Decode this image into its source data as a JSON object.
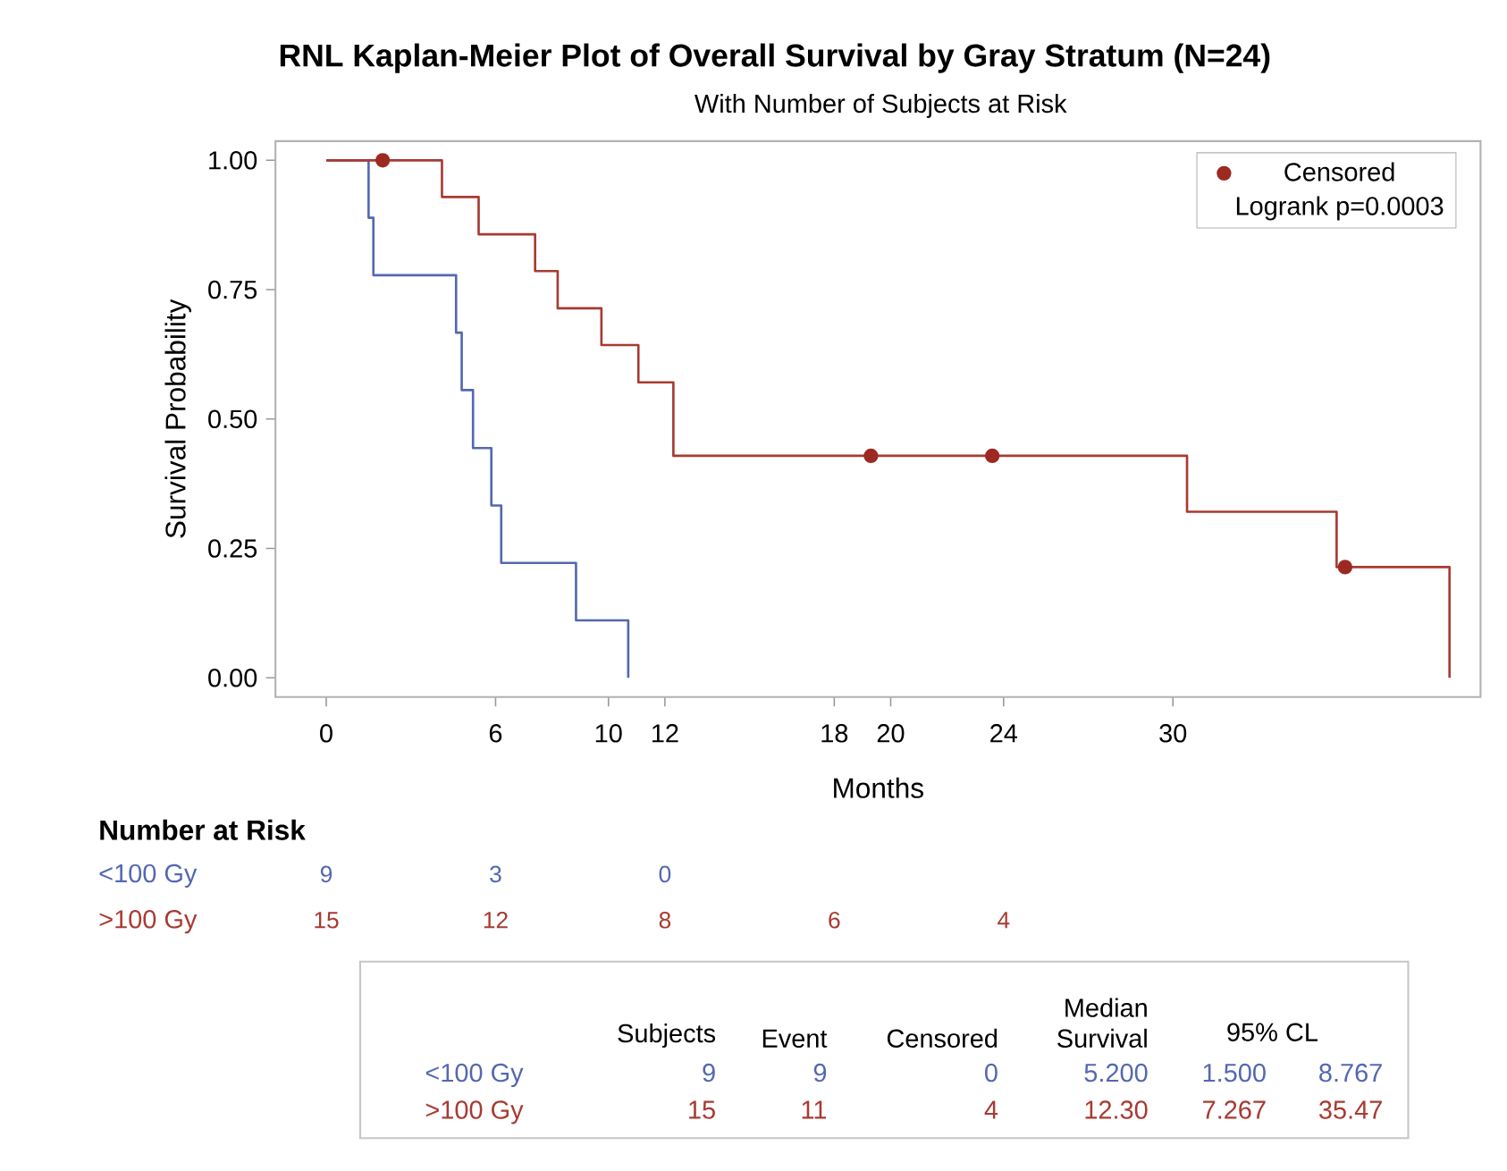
{
  "chart_data": {
    "type": "step",
    "title": "RNL Kaplan-Meier Plot of Overall Survival by Gray Stratum (N=24)",
    "subtitle": "With Number of Subjects at Risk",
    "xlabel": "Months",
    "ylabel": "Survival Probability",
    "xlim": [
      -1.8,
      40.9
    ],
    "ylim": [
      -0.037,
      1.037
    ],
    "xticks": [
      0,
      6,
      10,
      12,
      18,
      20,
      24,
      30
    ],
    "yticks": [
      {
        "value": 0,
        "label": "0.00"
      },
      {
        "value": 0.25,
        "label": "0.25"
      },
      {
        "value": 0.5,
        "label": "0.50"
      },
      {
        "value": 0.75,
        "label": "0.75"
      },
      {
        "value": 1,
        "label": "1.00"
      }
    ],
    "legend": "top right",
    "line_style": "solid",
    "grid": false,
    "series": [
      {
        "name": "<100 Gy",
        "color": "#5468b0",
        "x": [
          0,
          1.5,
          1.67,
          4.6,
          4.8,
          5.2,
          5.85,
          6.2,
          8.85,
          10.7
        ],
        "values": [
          1,
          0.889,
          0.778,
          0.667,
          0.556,
          0.444,
          0.333,
          0.222,
          0.111,
          0
        ]
      },
      {
        "name": ">100 Gy",
        "color": "#a83a32",
        "x": [
          0,
          4.1,
          5.4,
          7.4,
          8.2,
          9.75,
          11.06,
          12.3,
          30.5,
          35.8,
          39.8
        ],
        "values": [
          1,
          0.929,
          0.857,
          0.786,
          0.714,
          0.643,
          0.571,
          0.429,
          0.321,
          0.214,
          0
        ]
      },
      {
        "name": "Censored",
        "type": "scatter",
        "marker": "circle",
        "color": "#9c2a22",
        "x": [
          2.0,
          19.3,
          23.6,
          36.1
        ],
        "values": [
          1,
          0.429,
          0.429,
          0.214
        ]
      }
    ],
    "annotations": [
      "Logrank p=0.0003",
      "Number at Risk",
      "9",
      "3",
      "0",
      "15",
      "12",
      "8",
      "6",
      "4",
      "Subjects",
      "Event",
      "Censored",
      "Median Survival",
      "95% CL",
      "9",
      "9",
      "0",
      "5.200",
      "1.500",
      "8.767",
      "15",
      "11",
      "4",
      "12.30",
      "7.267",
      "35.47"
    ]
  }
}
